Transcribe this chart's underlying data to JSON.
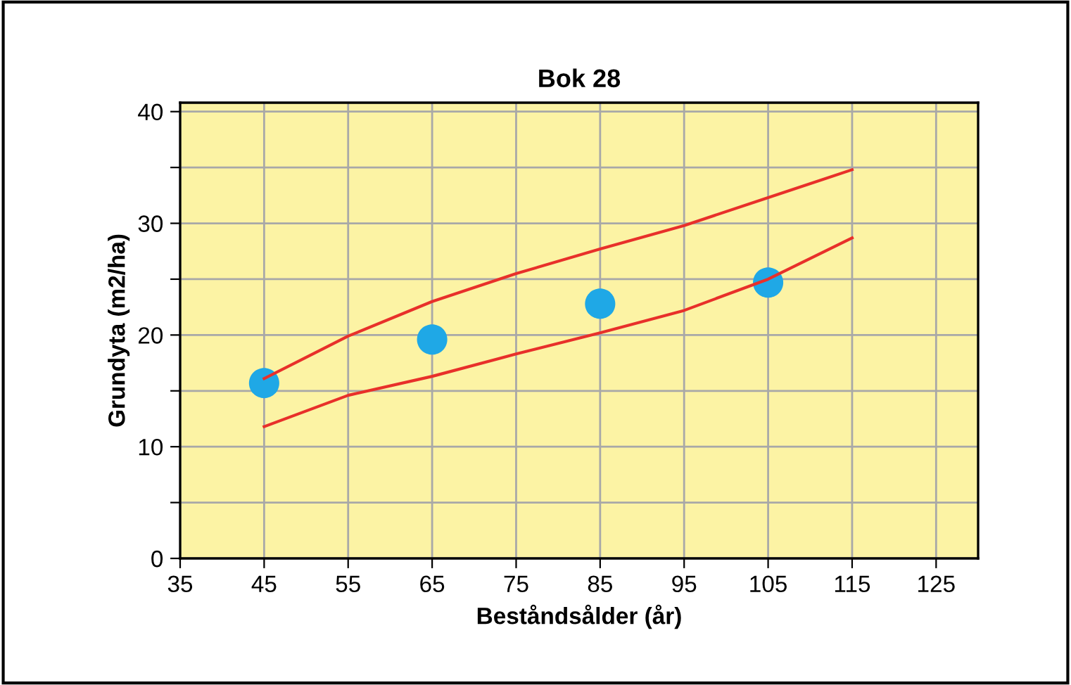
{
  "chart_data": {
    "type": "line",
    "title": "Bok 28",
    "xlabel": "Beståndsålder (år)",
    "ylabel": "Grundyta (m2/ha)",
    "xlim": [
      35,
      130
    ],
    "xticks": [
      35,
      45,
      55,
      65,
      75,
      85,
      95,
      105,
      115,
      125
    ],
    "ylim": [
      0,
      40.8
    ],
    "yticks": [
      0,
      {
        "value": 5,
        "label": null
      },
      10,
      {
        "value": 15,
        "label": null
      },
      20,
      {
        "value": 25,
        "label": null
      },
      30,
      {
        "value": 35,
        "label": null
      },
      40
    ],
    "grid": true,
    "legend": false,
    "series": [
      {
        "color": "#e8302a",
        "x": [
          45,
          55,
          65,
          75,
          85,
          95,
          105,
          115
        ],
        "values": [
          16.1,
          19.9,
          23.0,
          25.5,
          27.7,
          29.8,
          32.3,
          34.8
        ]
      },
      {
        "color": "#e8302a",
        "x": [
          45,
          55,
          65,
          75,
          85,
          95,
          105,
          115
        ],
        "values": [
          11.8,
          14.6,
          16.3,
          18.3,
          20.2,
          22.2,
          25.0,
          28.7
        ]
      },
      {
        "type": "scatter",
        "color": "#1fa8e6",
        "marker": "circle",
        "x": [
          45,
          65,
          85,
          105
        ],
        "values": [
          15.7,
          19.6,
          22.8,
          24.7
        ]
      }
    ]
  }
}
